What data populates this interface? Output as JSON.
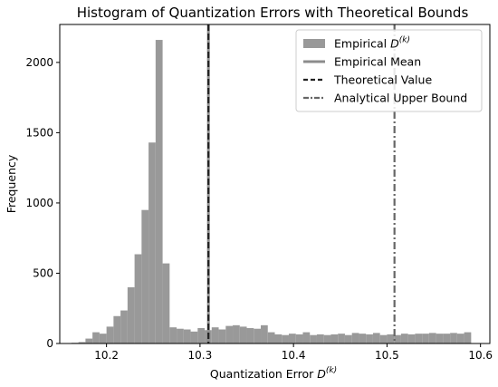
{
  "chart_data": {
    "type": "bar",
    "title": "Histogram of Quantization Errors with Theoretical Bounds",
    "xlabel": "Quantization Error",
    "xlabel_symbol": "D",
    "xlabel_superscript": "(k)",
    "ylabel": "Frequency",
    "xlim": [
      10.15,
      10.61
    ],
    "ylim": [
      0,
      2270
    ],
    "xticks": [
      10.2,
      10.3,
      10.4,
      10.5,
      10.6
    ],
    "xtick_labels": [
      "10.2",
      "10.3",
      "10.4",
      "10.5",
      "10.6"
    ],
    "yticks": [
      0,
      500,
      1000,
      1500,
      2000
    ],
    "ytick_labels": [
      "0",
      "500",
      "1000",
      "1500",
      "2000"
    ],
    "grid": false,
    "legend_placement": "top-right",
    "bin_width": 0.0075,
    "bins_start": [
      10.1625,
      10.17,
      10.1775,
      10.185,
      10.1925,
      10.2,
      10.2075,
      10.215,
      10.2225,
      10.23,
      10.2375,
      10.245,
      10.2525,
      10.26,
      10.2675,
      10.275,
      10.2825,
      10.29,
      10.2975,
      10.305,
      10.3125,
      10.32,
      10.3275,
      10.335,
      10.3425,
      10.35,
      10.3575,
      10.365,
      10.3725,
      10.38,
      10.3875,
      10.395,
      10.4025,
      10.41,
      10.4175,
      10.425,
      10.4325,
      10.44,
      10.4475,
      10.455,
      10.4625,
      10.47,
      10.4775,
      10.485,
      10.4925,
      10.5,
      10.5075,
      10.515,
      10.5225,
      10.53,
      10.5375,
      10.545,
      10.5525,
      10.56,
      10.5675,
      10.575,
      10.5825
    ],
    "counts": [
      5,
      10,
      35,
      80,
      70,
      120,
      195,
      235,
      400,
      635,
      950,
      1430,
      2160,
      570,
      115,
      105,
      100,
      85,
      110,
      95,
      115,
      100,
      125,
      130,
      120,
      110,
      105,
      130,
      80,
      65,
      60,
      70,
      65,
      80,
      60,
      65,
      60,
      65,
      70,
      60,
      75,
      70,
      65,
      75,
      60,
      65,
      60,
      70,
      65,
      70,
      70,
      75,
      70,
      70,
      75,
      70,
      80
    ],
    "bar_color": "#999999",
    "lines": [
      {
        "name": "Empirical Mean",
        "x": 10.309,
        "style": "solid",
        "color": "#8c8c8c"
      },
      {
        "name": "Theoretical Value",
        "x": 10.309,
        "style": "dashed",
        "color": "#222222"
      },
      {
        "name": "Analytical Upper Bound",
        "x": 10.508,
        "style": "dashdot",
        "color": "#666666"
      }
    ],
    "legend": [
      {
        "label": "Empirical",
        "symbol": "D",
        "superscript": "(k)",
        "kind": "patch",
        "color": "#999999"
      },
      {
        "label": "Empirical Mean",
        "kind": "line",
        "style": "solid",
        "color": "#8c8c8c"
      },
      {
        "label": "Theoretical Value",
        "kind": "line",
        "style": "dashed",
        "color": "#222222"
      },
      {
        "label": "Analytical Upper Bound",
        "kind": "line",
        "style": "dashdot",
        "color": "#666666"
      }
    ]
  }
}
